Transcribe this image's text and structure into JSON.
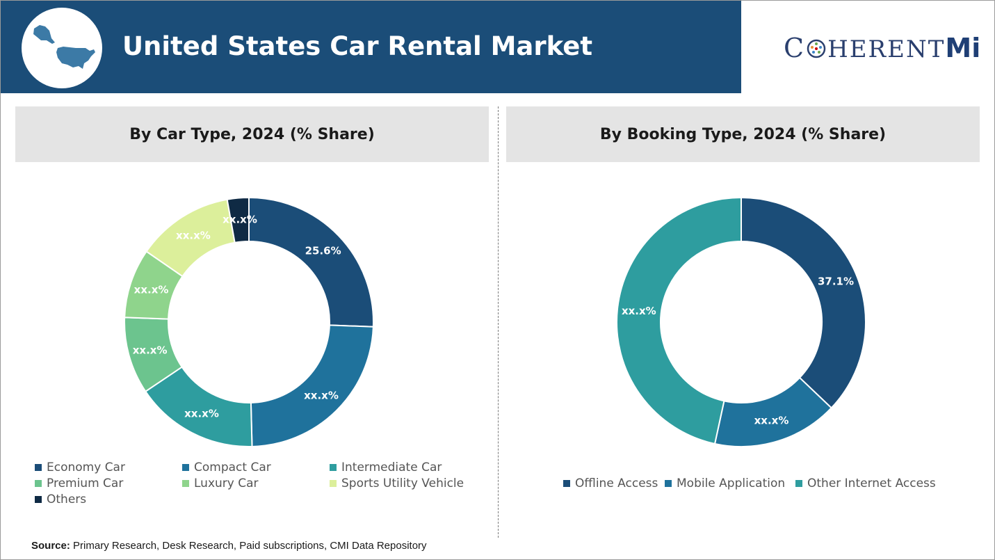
{
  "header": {
    "title": "United States Car Rental Market",
    "brand_prefix": "C",
    "brand_middle": "HERENT",
    "brand_suffix": "Mi"
  },
  "colors": {
    "header_bg": "#1b4d78",
    "economy": "#1b4d78",
    "compact": "#1f729c",
    "intermediate": "#2e9d9f",
    "premium": "#6cc48e",
    "luxury": "#8fd48c",
    "suv": "#dcef9b",
    "others": "#0f2a44",
    "offline": "#1b4d78",
    "mobile": "#1f729c",
    "other_internet": "#2e9d9f"
  },
  "chart_data": [
    {
      "type": "pie",
      "title": "By Car Type, 2024 (% Share)",
      "categories": [
        "Economy Car",
        "Compact Car",
        "Intermediate Car",
        "Premium Car",
        "Luxury Car",
        "Sports Utility Vehicle",
        "Others"
      ],
      "values": [
        25.6,
        24.0,
        16.0,
        10.0,
        9.0,
        12.6,
        2.8
      ],
      "labels": [
        "25.6%",
        "xx.x%",
        "xx.x%",
        "xx.x%",
        "xx.x%",
        "xx.x%",
        "xx.x%"
      ],
      "legend": "bottom"
    },
    {
      "type": "pie",
      "title": "By Booking Type, 2024 (% Share)",
      "categories": [
        "Offline Access",
        "Mobile Application",
        "Other Internet Access"
      ],
      "values": [
        37.1,
        16.3,
        46.6
      ],
      "labels": [
        "37.1%",
        "xx.x%",
        "xx.x%"
      ],
      "legend": "bottom"
    }
  ],
  "source": {
    "label": "Source:",
    "text": "Primary Research, Desk Research, Paid subscriptions, CMI Data Repository"
  }
}
